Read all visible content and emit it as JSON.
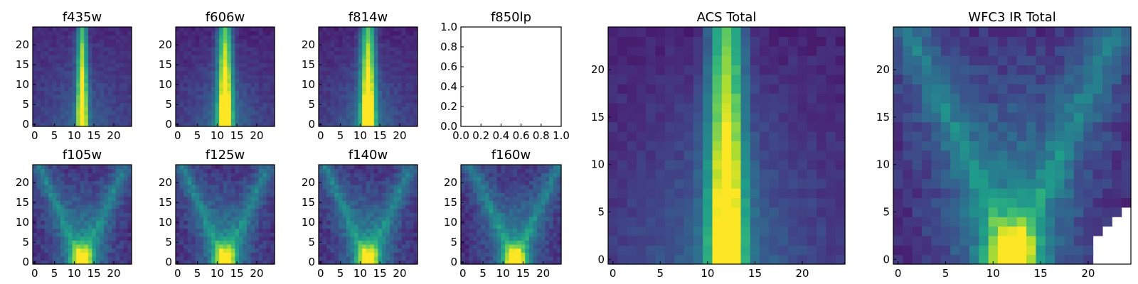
{
  "chart_data": [
    {
      "id": "f435w",
      "type": "heatmap",
      "title": "f435w",
      "xticks": [
        "0",
        "5",
        "10",
        "15",
        "20"
      ],
      "yticks": [
        "0",
        "5",
        "10",
        "15",
        "20"
      ],
      "xlim": [
        0,
        24
      ],
      "ylim": [
        0,
        24
      ],
      "profile": "narrow-core",
      "peak_column": 12
    },
    {
      "id": "f606w",
      "type": "heatmap",
      "title": "f606w",
      "xticks": [
        "0",
        "5",
        "10",
        "15",
        "20"
      ],
      "yticks": [
        "0",
        "5",
        "10",
        "15",
        "20"
      ],
      "xlim": [
        0,
        24
      ],
      "ylim": [
        0,
        24
      ],
      "profile": "core",
      "peak_column": 12
    },
    {
      "id": "f814w",
      "type": "heatmap",
      "title": "f814w",
      "xticks": [
        "0",
        "5",
        "10",
        "15",
        "20"
      ],
      "yticks": [
        "0",
        "5",
        "10",
        "15",
        "20"
      ],
      "xlim": [
        0,
        24
      ],
      "ylim": [
        0,
        24
      ],
      "profile": "core",
      "peak_column": 12
    },
    {
      "id": "f850lp",
      "type": "empty",
      "title": "f850lp",
      "xticks": [
        "0.0",
        "0.2",
        "0.4",
        "0.6",
        "0.8",
        "1.0"
      ],
      "yticks": [
        "0.0",
        "0.2",
        "0.4",
        "0.6",
        "0.8",
        "1.0"
      ],
      "xlim": [
        0,
        1
      ],
      "ylim": [
        0,
        1
      ]
    },
    {
      "id": "f105w",
      "type": "heatmap",
      "title": "f105w",
      "xticks": [
        "0",
        "5",
        "10",
        "15",
        "20"
      ],
      "yticks": [
        "0",
        "5",
        "10",
        "15",
        "20"
      ],
      "xlim": [
        0,
        24
      ],
      "ylim": [
        0,
        24
      ],
      "profile": "cone",
      "peak_column": 12
    },
    {
      "id": "f125w",
      "type": "heatmap",
      "title": "f125w",
      "xticks": [
        "0",
        "5",
        "10",
        "15",
        "20"
      ],
      "yticks": [
        "0",
        "5",
        "10",
        "15",
        "20"
      ],
      "xlim": [
        0,
        24
      ],
      "ylim": [
        0,
        24
      ],
      "profile": "cone",
      "peak_column": 12
    },
    {
      "id": "f140w",
      "type": "heatmap",
      "title": "f140w",
      "xticks": [
        "0",
        "5",
        "10",
        "15",
        "20"
      ],
      "yticks": [
        "0",
        "5",
        "10",
        "15",
        "20"
      ],
      "xlim": [
        0,
        24
      ],
      "ylim": [
        0,
        24
      ],
      "profile": "cone",
      "peak_column": 12
    },
    {
      "id": "f160w",
      "type": "heatmap",
      "title": "f160w",
      "xticks": [
        "0",
        "5",
        "10",
        "15",
        "20"
      ],
      "yticks": [
        "0",
        "5",
        "10",
        "15",
        "20"
      ],
      "xlim": [
        0,
        24
      ],
      "ylim": [
        0,
        24
      ],
      "profile": "cone",
      "peak_column": 13
    },
    {
      "id": "acs_total",
      "type": "heatmap",
      "title": "ACS Total",
      "xticks": [
        "0",
        "5",
        "10",
        "15",
        "20"
      ],
      "yticks": [
        "0",
        "5",
        "10",
        "15",
        "20"
      ],
      "xlim": [
        0,
        24
      ],
      "ylim": [
        0,
        24
      ],
      "profile": "core",
      "peak_column": 12
    },
    {
      "id": "wfc3_ir_total",
      "type": "heatmap",
      "title": "WFC3 IR Total",
      "xticks": [
        "0",
        "5",
        "10",
        "15",
        "20"
      ],
      "yticks": [
        "0",
        "5",
        "10",
        "15",
        "20"
      ],
      "xlim": [
        0,
        24
      ],
      "ylim": [
        0,
        24
      ],
      "profile": "cone",
      "peak_column": 12
    }
  ],
  "colors": {
    "colormap": "viridis",
    "low": "#440154",
    "mid": "#21918c",
    "high": "#fde725",
    "axis": "#000000",
    "background": "#ffffff"
  }
}
